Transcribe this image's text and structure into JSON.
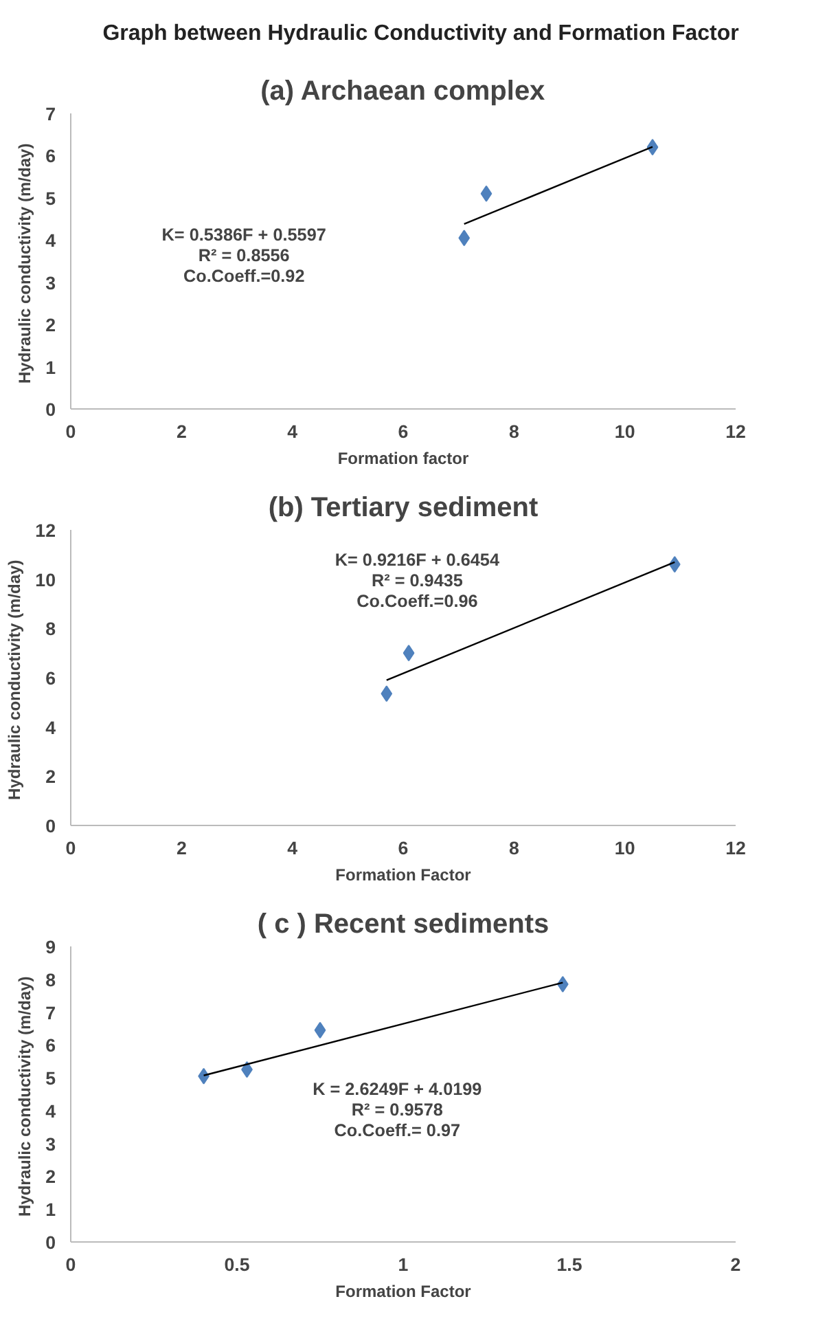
{
  "chart_data": [
    {
      "type": "other",
      "title": "Graph between Hydraulic Conductivity  and Formation Factor"
    },
    {
      "type": "scatter",
      "title": "(a) Archaean complex",
      "xlabel": "Formation factor",
      "ylabel": "Hydraulic conductivity  (m/day)",
      "xlim": [
        0,
        12
      ],
      "xticks": [
        0,
        2,
        4,
        6,
        8,
        10,
        12
      ],
      "ylim": [
        0,
        7
      ],
      "yticks": [
        0,
        1,
        2,
        3,
        4,
        5,
        6,
        7
      ],
      "annotations": [
        "K= 0.5386F + 0.5597",
        "R² = 0.8556",
        "Co.Coeff.=0.92"
      ],
      "series": [
        {
          "color": "#4f81bd",
          "marker": "diamond",
          "x": [
            7.1,
            7.5,
            10.5
          ],
          "values": [
            4.05,
            5.1,
            6.2
          ]
        },
        {
          "type": "line",
          "marker": "none",
          "color": "#000000",
          "x": [
            7.1,
            10.5
          ],
          "values": [
            4.38,
            6.21
          ]
        }
      ]
    },
    {
      "type": "scatter",
      "title": "(b) Tertiary sediment",
      "xlabel": "Formation Factor",
      "ylabel": "Hydraulic conductivity  (m/day)",
      "xlim": [
        0,
        12
      ],
      "xticks": [
        0,
        2,
        4,
        6,
        8,
        10,
        12
      ],
      "ylim": [
        0,
        12
      ],
      "yticks": [
        0,
        2,
        4,
        6,
        8,
        10,
        12
      ],
      "annotations": [
        "K= 0.9216F + 0.6454",
        "R² = 0.9435",
        "Co.Coeff.=0.96"
      ],
      "series": [
        {
          "color": "#4f81bd",
          "marker": "diamond",
          "x": [
            5.7,
            6.1,
            10.9
          ],
          "values": [
            5.35,
            7.0,
            10.6
          ]
        },
        {
          "type": "line",
          "marker": "none",
          "color": "#000000",
          "x": [
            5.7,
            10.9
          ],
          "values": [
            5.9,
            10.69
          ]
        }
      ]
    },
    {
      "type": "scatter",
      "title": "( c ) Recent sediments",
      "xlabel": "Formation Factor",
      "ylabel": "Hydraulic conductivity  (m/day)",
      "xlim": [
        0,
        2
      ],
      "xticks": [
        0,
        0.5,
        1,
        1.5,
        2
      ],
      "ylim": [
        0,
        9
      ],
      "yticks": [
        0,
        1,
        2,
        3,
        4,
        5,
        6,
        7,
        8,
        9
      ],
      "annotations": [
        "K = 2.6249F + 4.0199",
        "R² = 0.9578",
        "Co.Coeff.= 0.97"
      ],
      "series": [
        {
          "color": "#4f81bd",
          "marker": "diamond",
          "x": [
            0.4,
            0.53,
            0.75,
            1.48
          ],
          "values": [
            5.05,
            5.25,
            6.45,
            7.85
          ]
        },
        {
          "type": "line",
          "marker": "none",
          "color": "#000000",
          "x": [
            0.4,
            1.48
          ],
          "values": [
            5.07,
            7.9
          ]
        }
      ]
    }
  ]
}
